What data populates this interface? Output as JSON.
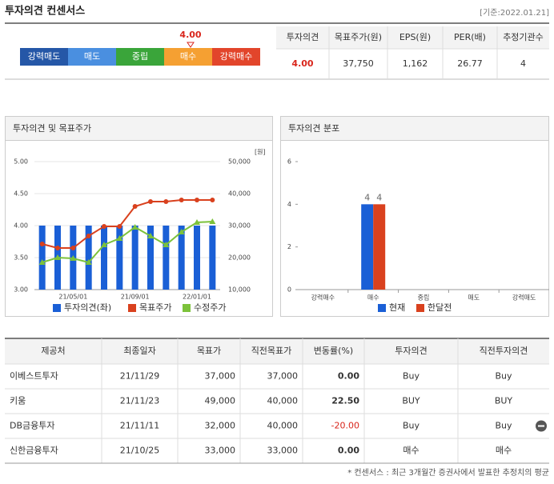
{
  "header": {
    "title": "투자의견 컨센서스",
    "date": "[기준:2022.01.21]"
  },
  "rating_bar": {
    "labels": [
      "강력매도",
      "매도",
      "중립",
      "매수",
      "강력매수"
    ],
    "colors": [
      "#2557a7",
      "#4a8fe0",
      "#3aa53a",
      "#f5a032",
      "#e2452b"
    ],
    "marker": "4.00"
  },
  "summary": {
    "headers": [
      "투자의견",
      "목표주가(원)",
      "EPS(원)",
      "PER(배)",
      "추정기관수"
    ],
    "values": [
      "4.00",
      "37,750",
      "1,162",
      "26.77",
      "4"
    ]
  },
  "chart_data": [
    {
      "type": "bar_line",
      "title": "투자의견 및 목표주가",
      "y2_label": "[원]",
      "categories": [
        null,
        null,
        "21/05/01",
        null,
        null,
        null,
        "21/09/01",
        null,
        null,
        null,
        "22/01/01",
        null
      ],
      "series": [
        {
          "name": "투자의견(좌)",
          "color": "#1a5fd6",
          "kind": "bar",
          "values": [
            4,
            4,
            4,
            4,
            4,
            4,
            4,
            4,
            4,
            4,
            4,
            4
          ]
        },
        {
          "name": "목표주가",
          "color": "#d9411e",
          "kind": "line",
          "marker": "circle",
          "axis": "y2",
          "values": [
            24250,
            23000,
            23000,
            26750,
            29750,
            29750,
            36000,
            37500,
            37500,
            38000,
            38000,
            38000
          ]
        },
        {
          "name": "수정주가",
          "color": "#7cc23b",
          "kind": "line",
          "marker": "triangle",
          "axis": "y2",
          "values": [
            18500,
            20000,
            19750,
            18500,
            24000,
            26000,
            29500,
            26750,
            24000,
            28000,
            31000,
            31250
          ]
        }
      ],
      "ylim": [
        3,
        5
      ],
      "yticks": [
        {
          "value": 3,
          "label": "3.00"
        },
        {
          "value": 3.5,
          "label": "3.50"
        },
        {
          "value": 4,
          "label": "4.00"
        },
        {
          "value": 4.5,
          "label": "4.50"
        },
        {
          "value": 5,
          "label": "5.00"
        }
      ],
      "y2lim": [
        10000,
        50000
      ],
      "y2ticks": [
        {
          "value": 10000,
          "label": "10,000"
        },
        {
          "value": 20000,
          "label": "20,000"
        },
        {
          "value": 30000,
          "label": "30,000"
        },
        {
          "value": 40000,
          "label": "40,000"
        },
        {
          "value": 50000,
          "label": "50,000"
        }
      ],
      "grid": true
    },
    {
      "type": "bar",
      "title": "투자의견 분포",
      "categories": [
        "강력매수",
        "매수",
        "중립",
        "매도",
        "강력매도"
      ],
      "series": [
        {
          "name": "현재",
          "color": "#1a5fd6",
          "values": [
            0,
            4,
            0,
            0,
            0
          ]
        },
        {
          "name": "한달전",
          "color": "#d9411e",
          "values": [
            0,
            4,
            0,
            0,
            0
          ]
        }
      ],
      "ylim": [
        0,
        6
      ],
      "yticks": [
        0,
        2,
        4,
        6
      ],
      "data_labels": true
    }
  ],
  "table": {
    "headers": [
      "제공처",
      "최종일자",
      "목표가",
      "직전목표가",
      "변동률(%)",
      "투자의견",
      "직전투자의견"
    ],
    "rows": [
      [
        "이베스트투자",
        "21/11/29",
        "37,000",
        "37,000",
        "0.00",
        "Buy",
        "Buy"
      ],
      [
        "키움",
        "21/11/23",
        "49,000",
        "40,000",
        "22.50",
        "BUY",
        "BUY"
      ],
      [
        "DB금융투자",
        "21/11/11",
        "32,000",
        "40,000",
        "-20.00",
        "Buy",
        "Buy"
      ],
      [
        "신한금융투자",
        "21/10/25",
        "33,000",
        "33,000",
        "0.00",
        "매수",
        "매수"
      ]
    ]
  },
  "footnote": "* 컨센서스 : 최근 3개월간 증권사에서 발표한 추정치의 평균"
}
